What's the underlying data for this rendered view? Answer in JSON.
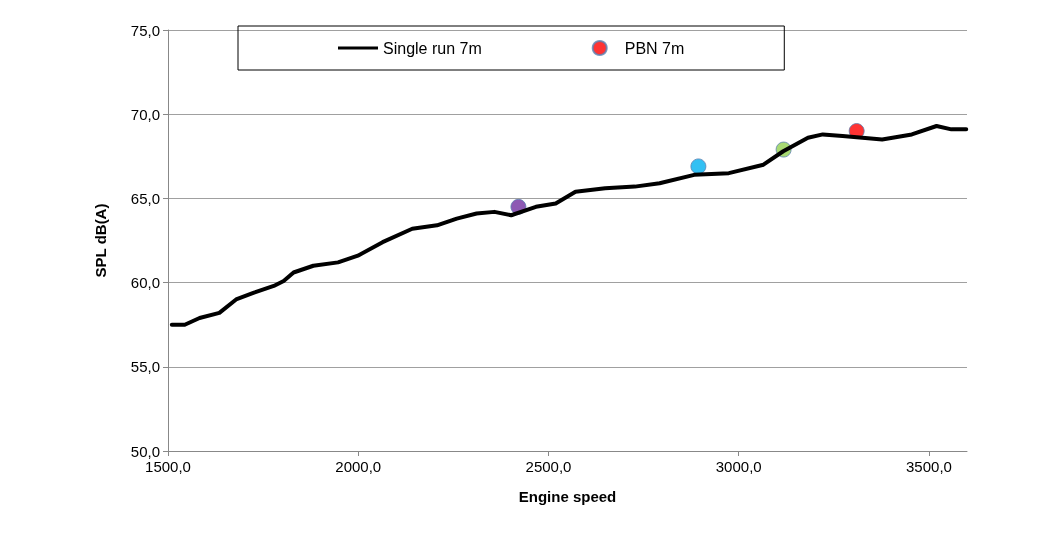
{
  "chart_data": {
    "type": "line",
    "xlabel": "Engine speed",
    "ylabel": "SPL dB(A)",
    "xlim": [
      1500,
      3600
    ],
    "xticks": [
      {
        "value": 1500,
        "label": "1500,0"
      },
      {
        "value": 2000,
        "label": "2000,0"
      },
      {
        "value": 2500,
        "label": "2500,0"
      },
      {
        "value": 3000,
        "label": "3000,0"
      },
      {
        "value": 3500,
        "label": "3500,0"
      }
    ],
    "ylim": [
      50,
      75
    ],
    "yticks": [
      {
        "value": 50,
        "label": "50,0"
      },
      {
        "value": 55,
        "label": "55,0"
      },
      {
        "value": 60,
        "label": "60,0"
      },
      {
        "value": 65,
        "label": "65,0"
      },
      {
        "value": 70,
        "label": "70,0"
      },
      {
        "value": 75,
        "label": "75,0"
      }
    ],
    "grid": "y",
    "legend": "top",
    "line_style": "solid",
    "marker": "none",
    "series": [
      {
        "name": "Single run 7m",
        "color": "#000000",
        "x": [
          1510,
          1544,
          1583,
          1635,
          1679,
          1726,
          1778,
          1804,
          1830,
          1882,
          1947,
          1999,
          2064,
          2142,
          2207,
          2259,
          2311,
          2358,
          2402,
          2467,
          2519,
          2571,
          2649,
          2727,
          2792,
          2883,
          2974,
          3065,
          3117,
          3182,
          3221,
          3273,
          3325,
          3377,
          3455,
          3520,
          3559,
          3598
        ],
        "values": [
          57.5,
          57.5,
          57.9,
          58.2,
          59.0,
          59.4,
          59.8,
          60.1,
          60.6,
          61.0,
          61.2,
          61.6,
          62.4,
          63.2,
          63.4,
          63.8,
          64.1,
          64.2,
          64.0,
          64.5,
          64.7,
          65.4,
          65.6,
          65.7,
          65.9,
          66.4,
          66.5,
          67.0,
          67.8,
          68.6,
          68.8,
          68.7,
          68.6,
          68.5,
          68.8,
          69.3,
          69.1,
          69.1
        ]
      },
      {
        "name": "PBN 7m",
        "type": "scatter",
        "marker": "circle",
        "color": "#ff0000",
        "colors": [
          "#7030a0",
          "#00b0f0",
          "#92d050",
          "#ff0000"
        ],
        "x": [
          2421,
          2894,
          3118,
          3310
        ],
        "values": [
          64.5,
          66.9,
          67.9,
          69.0
        ]
      }
    ]
  }
}
